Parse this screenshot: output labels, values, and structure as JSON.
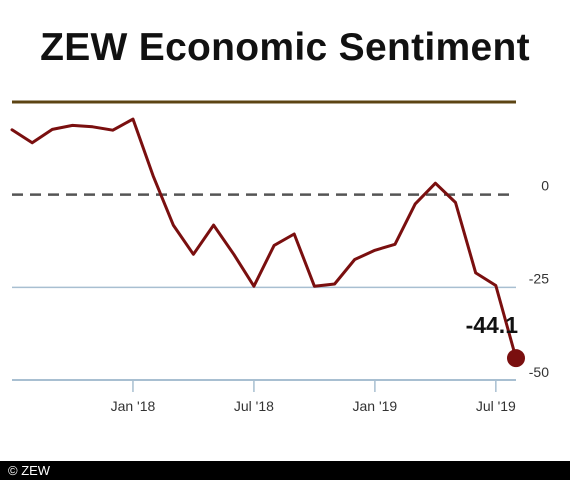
{
  "title": "ZEW Economic Sentiment",
  "footer": "© ZEW",
  "chart_data": {
    "type": "line",
    "title": "ZEW Economic Sentiment",
    "xlabel": "",
    "ylabel": "",
    "x": [
      "2017-07",
      "2017-08",
      "2017-09",
      "2017-10",
      "2017-11",
      "2017-12",
      "2018-01",
      "2018-02",
      "2018-03",
      "2018-04",
      "2018-05",
      "2018-06",
      "2018-07",
      "2018-08",
      "2018-09",
      "2018-10",
      "2018-11",
      "2018-12",
      "2019-01",
      "2019-02",
      "2019-03",
      "2019-04",
      "2019-05",
      "2019-06",
      "2019-07",
      "2019-08"
    ],
    "series": [
      {
        "values": [
          17.5,
          14.0,
          17.6,
          18.7,
          18.3,
          17.4,
          20.4,
          5.1,
          -8.2,
          -16.1,
          -8.2,
          -16.1,
          -24.7,
          -13.7,
          -10.6,
          -24.7,
          -24.1,
          -17.5,
          -15.0,
          -13.4,
          -2.5,
          3.1,
          -2.1,
          -21.1,
          -24.5,
          -44.1
        ]
      }
    ],
    "y_ticks": [
      0,
      -25,
      -50
    ],
    "x_ticks": [
      {
        "x": "2018-01",
        "label": "Jan '18"
      },
      {
        "x": "2018-07",
        "label": "Jul '18"
      },
      {
        "x": "2019-01",
        "label": "Jan '19"
      },
      {
        "x": "2019-07",
        "label": "Jul '19"
      }
    ],
    "ylim": [
      -50,
      25
    ],
    "data_label": "-44.1",
    "grid": true,
    "colors": {
      "line": "#7a0f0f",
      "top_rule": "#5c4413",
      "grid": "#a8bfd1",
      "zero_line": "#555555"
    }
  }
}
